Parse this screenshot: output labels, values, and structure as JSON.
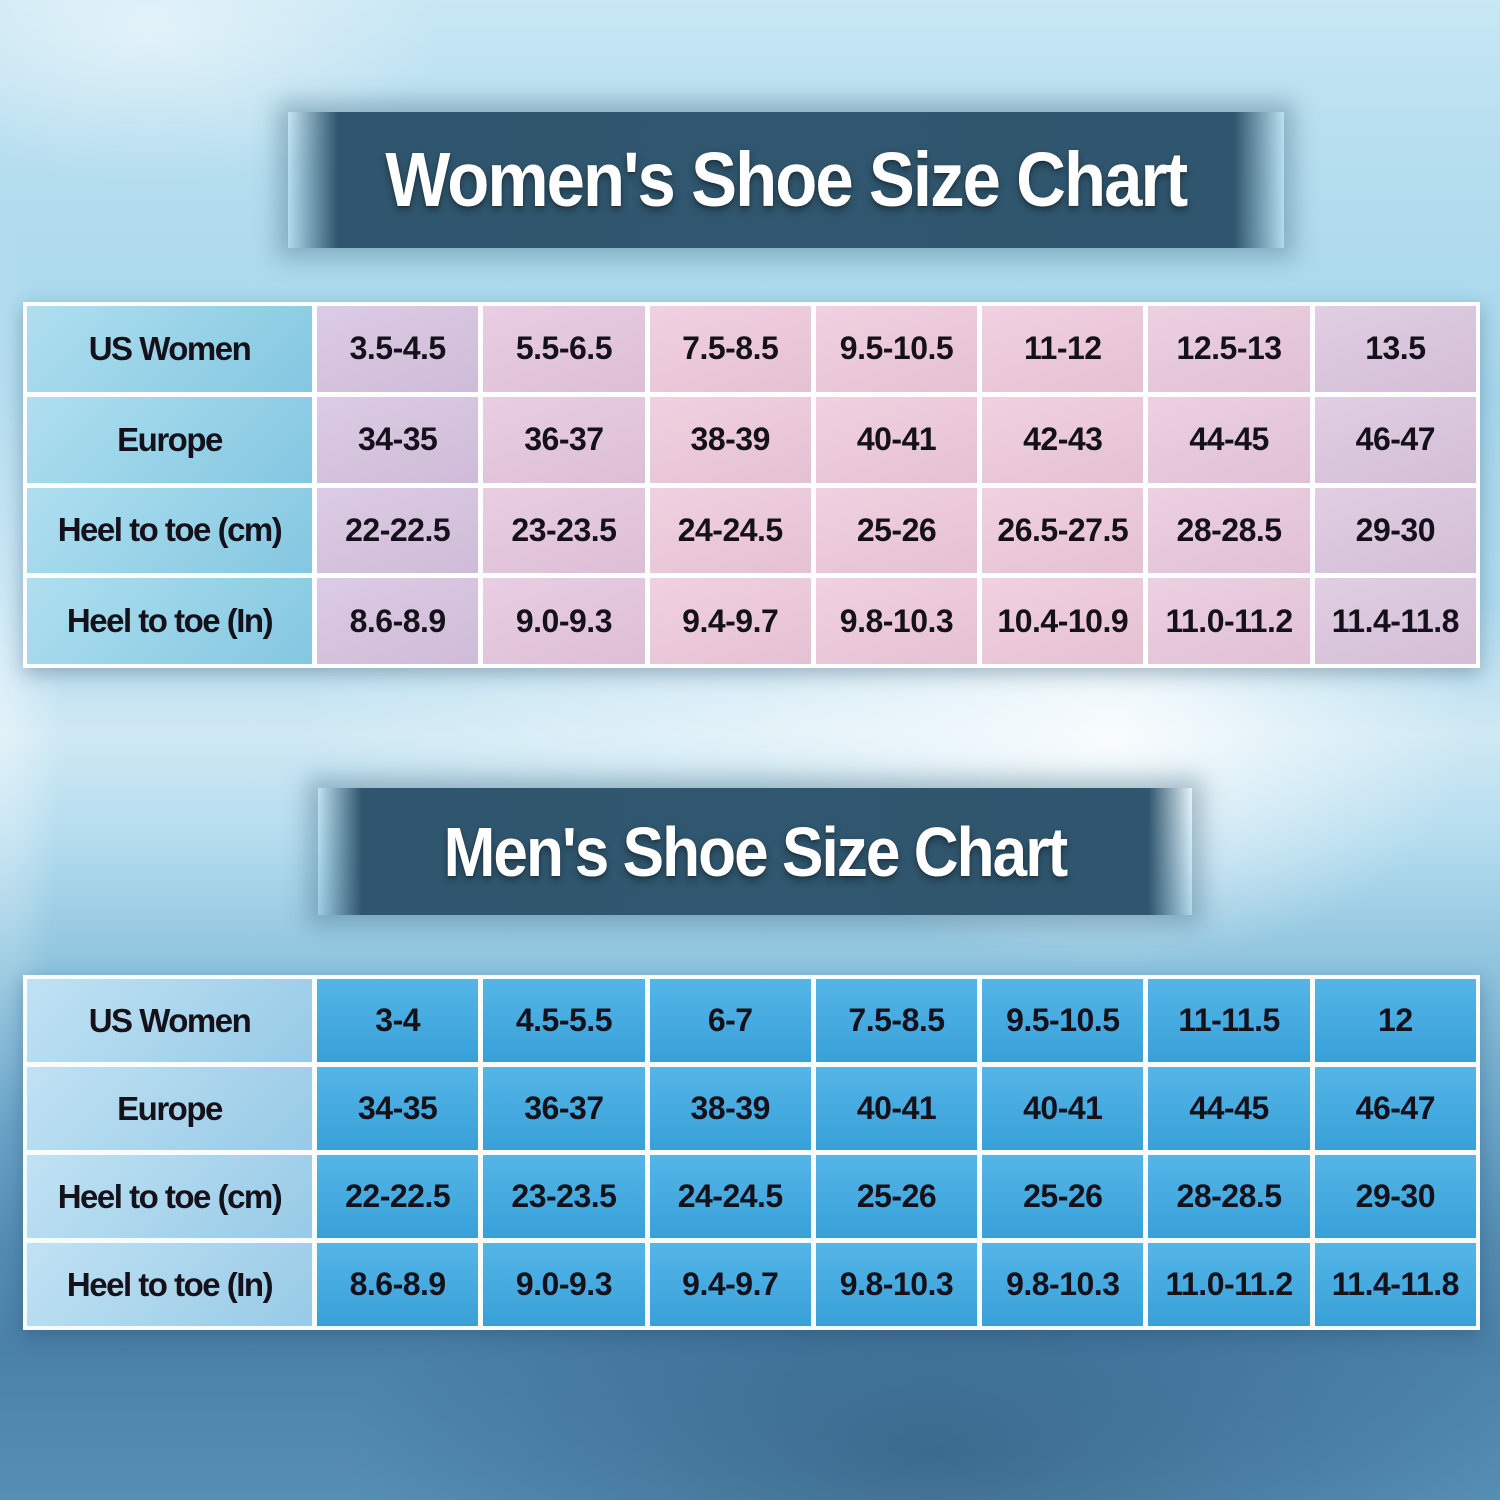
{
  "palette": {
    "banner_background": "#30576f",
    "banner_text": "#ffffff",
    "grid_line": "#ffffff",
    "cell_text": "#15111a",
    "women_label_cell": "#93d4ea",
    "women_value_cell_pink": "#eec9db",
    "women_value_cell_lavender": "#d7c3e0",
    "men_label_cell": "#a5d5ee",
    "men_value_cell": "#3dabe4",
    "background_top": "#c8e7f4",
    "background_bottom": "#4a81a9"
  },
  "women_chart": {
    "title": "Women's Shoe Size Chart",
    "rows": [
      {
        "label": "US Women",
        "values": [
          "3.5-4.5",
          "5.5-6.5",
          "7.5-8.5",
          "9.5-10.5",
          "11-12",
          "12.5-13",
          "13.5"
        ]
      },
      {
        "label": "Europe",
        "values": [
          "34-35",
          "36-37",
          "38-39",
          "40-41",
          "42-43",
          "44-45",
          "46-47"
        ]
      },
      {
        "label": "Heel to toe (cm)",
        "values": [
          "22-22.5",
          "23-23.5",
          "24-24.5",
          "25-26",
          "26.5-27.5",
          "28-28.5",
          "29-30"
        ]
      },
      {
        "label": "Heel to toe (In)",
        "values": [
          "8.6-8.9",
          "9.0-9.3",
          "9.4-9.7",
          "9.8-10.3",
          "10.4-10.9",
          "11.0-11.2",
          "11.4-11.8"
        ]
      }
    ]
  },
  "men_chart": {
    "title": "Men's Shoe Size Chart",
    "rows": [
      {
        "label": "US Women",
        "values": [
          "3-4",
          "4.5-5.5",
          "6-7",
          "7.5-8.5",
          "9.5-10.5",
          "11-11.5",
          "12"
        ]
      },
      {
        "label": "Europe",
        "values": [
          "34-35",
          "36-37",
          "38-39",
          "40-41",
          "40-41",
          "44-45",
          "46-47"
        ]
      },
      {
        "label": "Heel to toe (cm)",
        "values": [
          "22-22.5",
          "23-23.5",
          "24-24.5",
          "25-26",
          "25-26",
          "28-28.5",
          "29-30"
        ]
      },
      {
        "label": "Heel to toe (In)",
        "values": [
          "8.6-8.9",
          "9.0-9.3",
          "9.4-9.7",
          "9.8-10.3",
          "9.8-10.3",
          "11.0-11.2",
          "11.4-11.8"
        ]
      }
    ]
  },
  "chart_data": [
    {
      "type": "table",
      "title": "Women's Shoe Size Chart",
      "row_headers": [
        "US Women",
        "Europe",
        "Heel to toe (cm)",
        "Heel to toe (In)"
      ],
      "rows": [
        [
          "3.5-4.5",
          "5.5-6.5",
          "7.5-8.5",
          "9.5-10.5",
          "11-12",
          "12.5-13",
          "13.5"
        ],
        [
          "34-35",
          "36-37",
          "38-39",
          "40-41",
          "42-43",
          "44-45",
          "46-47"
        ],
        [
          "22-22.5",
          "23-23.5",
          "24-24.5",
          "25-26",
          "26.5-27.5",
          "28-28.5",
          "29-30"
        ],
        [
          "8.6-8.9",
          "9.0-9.3",
          "9.4-9.7",
          "9.8-10.3",
          "10.4-10.9",
          "11.0-11.2",
          "11.4-11.8"
        ]
      ]
    },
    {
      "type": "table",
      "title": "Men's Shoe Size Chart",
      "row_headers": [
        "US Women",
        "Europe",
        "Heel to toe (cm)",
        "Heel to toe (In)"
      ],
      "rows": [
        [
          "3-4",
          "4.5-5.5",
          "6-7",
          "7.5-8.5",
          "9.5-10.5",
          "11-11.5",
          "12"
        ],
        [
          "34-35",
          "36-37",
          "38-39",
          "40-41",
          "40-41",
          "44-45",
          "46-47"
        ],
        [
          "22-22.5",
          "23-23.5",
          "24-24.5",
          "25-26",
          "25-26",
          "28-28.5",
          "29-30"
        ],
        [
          "8.6-8.9",
          "9.0-9.3",
          "9.4-9.7",
          "9.8-10.3",
          "9.8-10.3",
          "11.0-11.2",
          "11.4-11.8"
        ]
      ]
    }
  ]
}
